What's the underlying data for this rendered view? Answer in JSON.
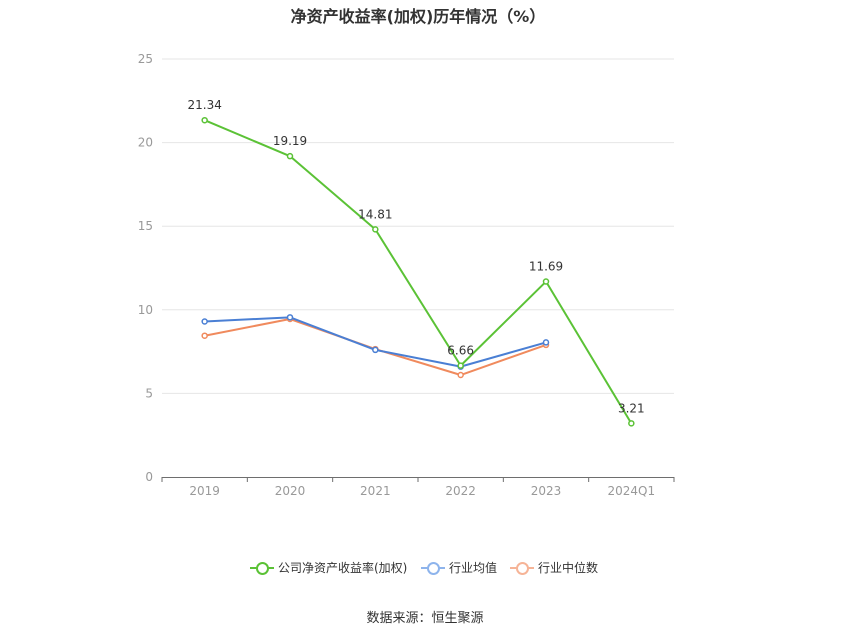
{
  "chart_data": {
    "type": "line",
    "title": "净资产收益率(加权)历年情况（%）",
    "categories": [
      "2019",
      "2020",
      "2021",
      "2022",
      "2023",
      "2024Q1"
    ],
    "ylim": [
      0,
      25
    ],
    "yticks": [
      "0",
      "5",
      "10",
      "15",
      "20",
      "25"
    ],
    "grid": true,
    "legend_position": "bottom",
    "series": [
      {
        "name": "公司净资产收益率(加权)",
        "color": "#5bc236",
        "values": [
          21.34,
          19.19,
          14.81,
          6.66,
          11.69,
          3.21
        ],
        "labels": [
          "21.34",
          "19.19",
          "14.81",
          "6.66",
          "11.69",
          "3.21"
        ]
      },
      {
        "name": "行业均值",
        "color": "#4a7fd4",
        "values": [
          9.3,
          9.55,
          7.6,
          6.6,
          8.05,
          null
        ]
      },
      {
        "name": "行业中位数",
        "color": "#f08a5d",
        "values": [
          8.45,
          9.45,
          7.65,
          6.1,
          7.9,
          null
        ]
      }
    ]
  },
  "source": "数据来源：恒生聚源"
}
